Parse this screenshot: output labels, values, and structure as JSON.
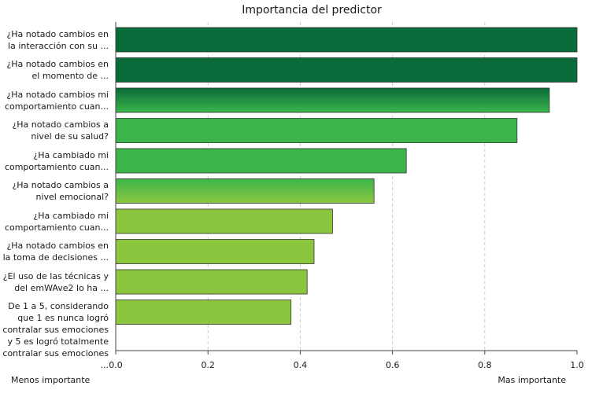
{
  "chart_data": {
    "type": "bar",
    "orientation": "horizontal",
    "title": "Importancia del predictor",
    "categories": [
      "¿Ha notado cambios en\nla interacción con su ...",
      "¿Ha notado cambios en\nel momento de ...",
      "¿Ha notado cambios mi\ncomportamiento cuan...",
      "¿Ha notado cambios a\nnivel de su salud?",
      "¿Ha cambiado mi\ncomportamiento cuan...",
      "¿Ha notado cambios a\nnivel emocional?",
      "¿Ha cambiado mi\ncomportamiento cuan...",
      "¿Ha notado cambios en\nla toma de decisiones ...",
      "¿El uso de las técnicas y\ndel emWAve2 lo ha ...",
      "De 1 a 5, considerando\nque 1 es nunca logró\ncontralar sus emociones\ny 5 es logró totalmente\ncontralar sus emociones ..."
    ],
    "values": [
      1.0,
      1.0,
      0.94,
      0.87,
      0.63,
      0.56,
      0.47,
      0.43,
      0.415,
      0.38
    ],
    "xlim": [
      0.0,
      1.0
    ],
    "xticks": [
      "0.0",
      "0.2",
      "0.4",
      "0.6",
      "0.8",
      "1.0"
    ],
    "xlabel_left": "Menos importante",
    "xlabel_right": "Mas importante",
    "grid": "vertical dashed",
    "colors": {
      "dark": "#0a6b3a",
      "mid": "#3bb54a",
      "light": "#8cc63f",
      "bar_border": "#333333",
      "grid": "#cccccc"
    }
  }
}
